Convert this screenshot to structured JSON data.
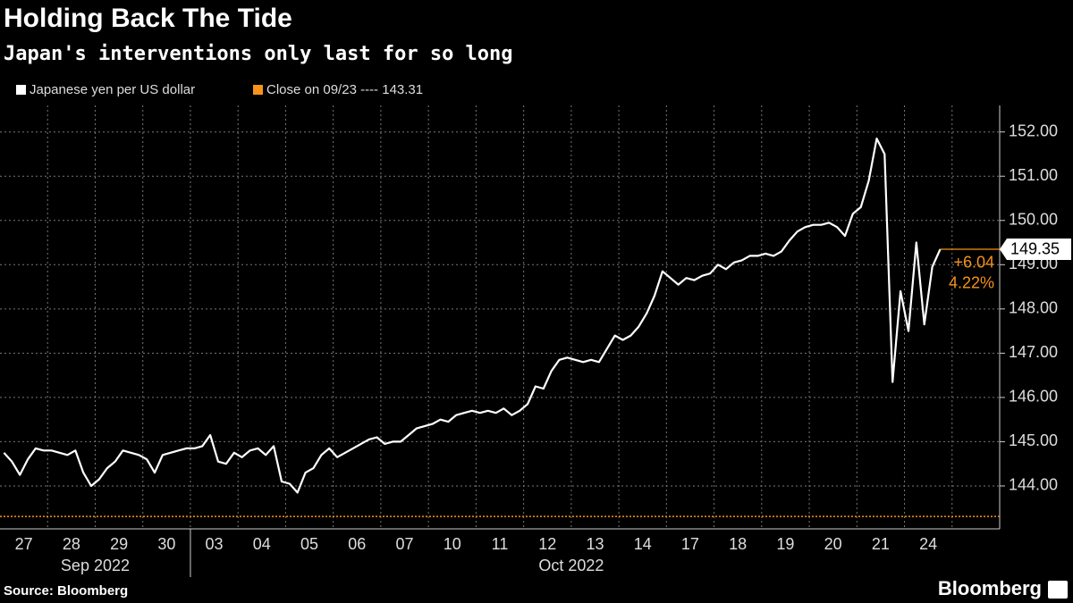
{
  "chart_data": {
    "type": "line",
    "title": "Holding Back The Tide",
    "subtitle": "Japan's interventions only last for so long",
    "categories": [
      "27",
      "28",
      "29",
      "30",
      "03",
      "04",
      "05",
      "06",
      "07",
      "10",
      "11",
      "12",
      "13",
      "14",
      "17",
      "18",
      "19",
      "20",
      "21",
      "24"
    ],
    "month_labels": [
      {
        "label": "Sep 2022",
        "first": 0,
        "last": 3
      },
      {
        "label": "Oct 2022",
        "first": 4,
        "last": 19
      }
    ],
    "series": [
      {
        "name": "Japanese yen per US dollar",
        "color": "#ffffff",
        "values": [
          [
            144.75,
            144.55,
            144.25,
            144.6,
            144.85,
            144.8
          ],
          [
            144.8,
            144.75,
            144.7,
            144.8,
            144.3,
            144.0
          ],
          [
            144.15,
            144.4,
            144.55,
            144.8,
            144.75,
            144.7
          ],
          [
            144.6,
            144.3,
            144.7,
            144.75,
            144.8,
            144.85
          ],
          [
            144.85,
            144.9,
            145.15,
            144.55,
            144.5,
            144.75
          ],
          [
            144.65,
            144.8,
            144.85,
            144.7,
            144.9,
            144.1
          ],
          [
            144.05,
            143.85,
            144.3,
            144.4,
            144.7,
            144.85
          ],
          [
            144.65,
            144.75,
            144.85,
            144.95,
            145.05,
            145.1
          ],
          [
            144.95,
            145.0,
            145.0,
            145.15,
            145.3,
            145.35
          ],
          [
            145.4,
            145.5,
            145.45,
            145.6,
            145.65,
            145.7
          ],
          [
            145.65,
            145.7,
            145.65,
            145.75,
            145.6,
            145.7
          ],
          [
            145.85,
            146.25,
            146.2,
            146.6,
            146.85,
            146.9
          ],
          [
            146.85,
            146.8,
            146.85,
            146.8,
            147.1,
            147.4
          ],
          [
            147.3,
            147.4,
            147.6,
            147.9,
            148.3,
            148.85
          ],
          [
            148.7,
            148.55,
            148.7,
            148.65,
            148.75,
            148.8
          ],
          [
            149.0,
            148.9,
            149.05,
            149.1,
            149.2,
            149.2
          ],
          [
            149.25,
            149.2,
            149.3,
            149.55,
            149.75,
            149.85
          ],
          [
            149.9,
            149.9,
            149.95,
            149.85,
            149.65,
            150.15
          ],
          [
            150.3,
            150.9,
            151.85,
            151.5,
            146.35,
            148.4
          ],
          [
            147.5,
            149.5,
            147.65,
            148.95,
            149.35
          ]
        ]
      }
    ],
    "reference": {
      "name": "Close on 09/23 ---- 143.31",
      "value": 143.31,
      "color": "#f7931a"
    },
    "last_value": 149.35,
    "change_label": "+6.04",
    "change_pct_label": "4.22%",
    "ylim": [
      143.03,
      152.6
    ],
    "yticks": [
      {
        "value": 144,
        "label": "144.00"
      },
      {
        "value": 145,
        "label": "145.00"
      },
      {
        "value": 146,
        "label": "146.00"
      },
      {
        "value": 147,
        "label": "147.00"
      },
      {
        "value": 148,
        "label": "148.00"
      },
      {
        "value": 149,
        "label": "149.00"
      },
      {
        "value": 150,
        "label": "150.00"
      },
      {
        "value": 151,
        "label": "151.00"
      },
      {
        "value": 152,
        "label": "152.00"
      }
    ],
    "grid": true,
    "source": "Source: Bloomberg",
    "logo": "Bloomberg"
  }
}
